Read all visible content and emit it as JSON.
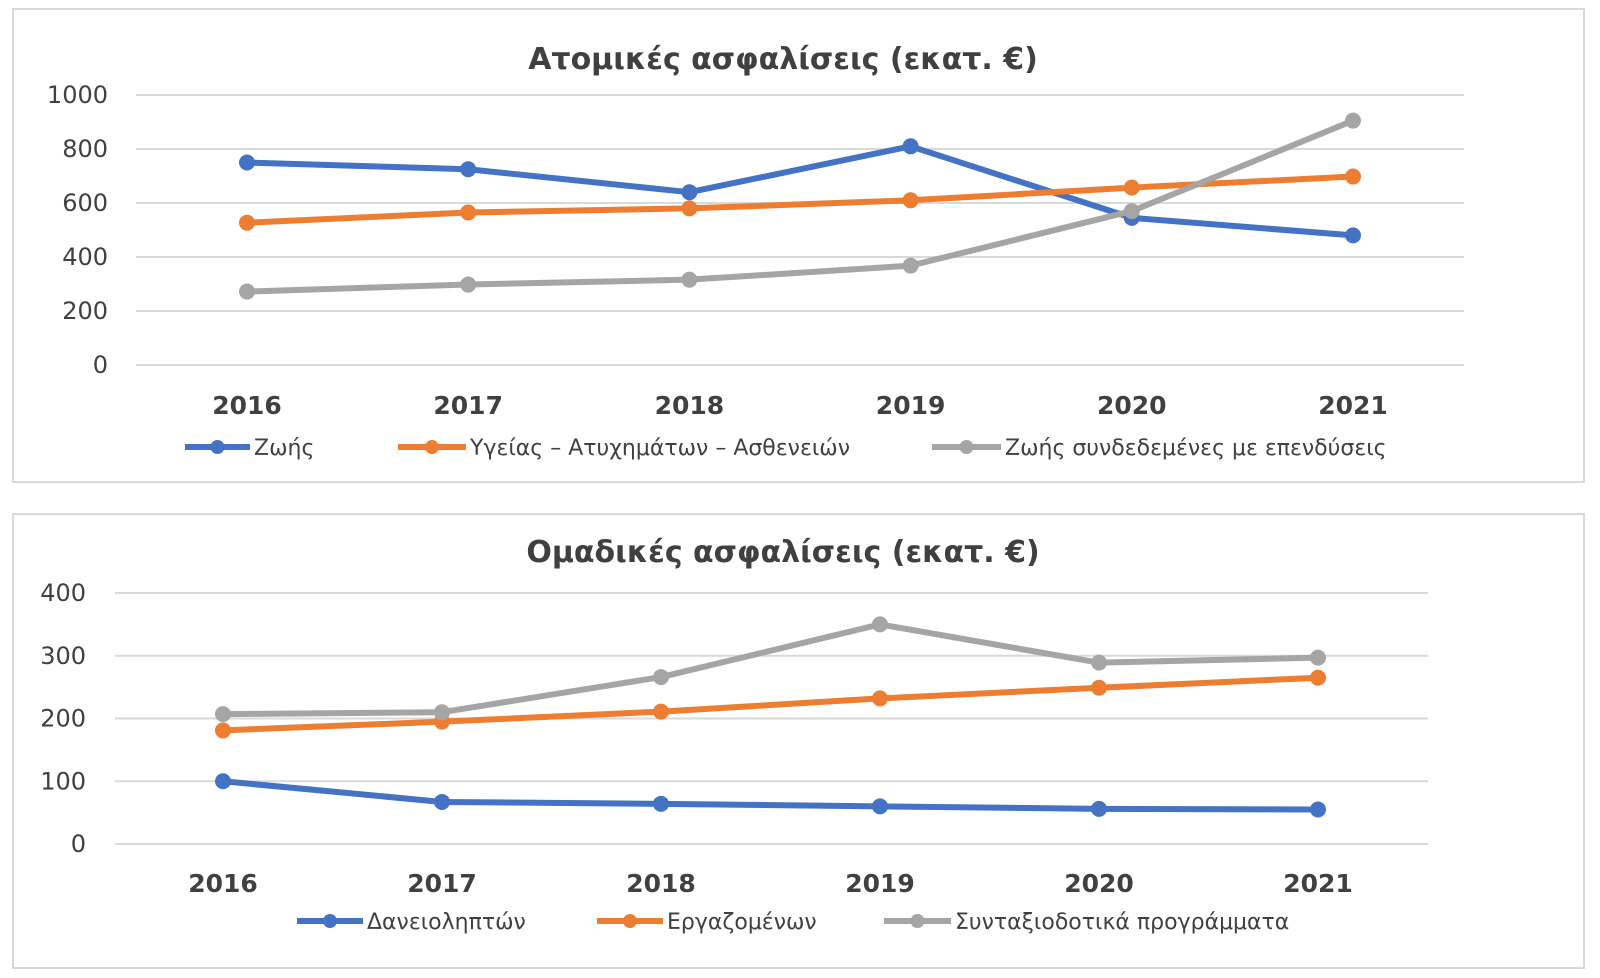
{
  "chart_data": [
    {
      "type": "line",
      "title": "Ατομικές ασφαλίσεις  (εκατ. €)",
      "categories": [
        "2016",
        "2017",
        "2018",
        "2019",
        "2020",
        "2021"
      ],
      "ylim": [
        0,
        1000
      ],
      "yticks": [
        0,
        200,
        400,
        600,
        800,
        1000
      ],
      "grid": true,
      "legend_position": "bottom",
      "series": [
        {
          "name": "Ζωής",
          "color": "#4472c4",
          "values": [
            750,
            725,
            640,
            810,
            545,
            480
          ]
        },
        {
          "name": "Υγείας – Ατυχημάτων – Ασθενειών",
          "color": "#ed7d31",
          "values": [
            527,
            565,
            580,
            610,
            657,
            698
          ]
        },
        {
          "name": "Ζωής συνδεδεμένες με επενδύσεις",
          "color": "#a5a5a5",
          "values": [
            272,
            298,
            316,
            368,
            570,
            905
          ]
        }
      ]
    },
    {
      "type": "line",
      "title": "Ομαδικές ασφαλίσεις  (εκατ. €)",
      "categories": [
        "2016",
        "2017",
        "2018",
        "2019",
        "2020",
        "2021"
      ],
      "ylim": [
        0,
        400
      ],
      "yticks": [
        0,
        100,
        200,
        300,
        400
      ],
      "grid": true,
      "legend_position": "bottom",
      "series": [
        {
          "name": "Δανειοληπτών",
          "color": "#4472c4",
          "values": [
            100,
            67,
            64,
            60,
            56,
            55
          ]
        },
        {
          "name": "Εργαζομένων",
          "color": "#ed7d31",
          "values": [
            181,
            195,
            211,
            232,
            249,
            265
          ]
        },
        {
          "name": "Συνταξιοδοτικά προγράμματα",
          "color": "#a5a5a5",
          "values": [
            207,
            210,
            266,
            350,
            289,
            297
          ]
        }
      ]
    }
  ]
}
